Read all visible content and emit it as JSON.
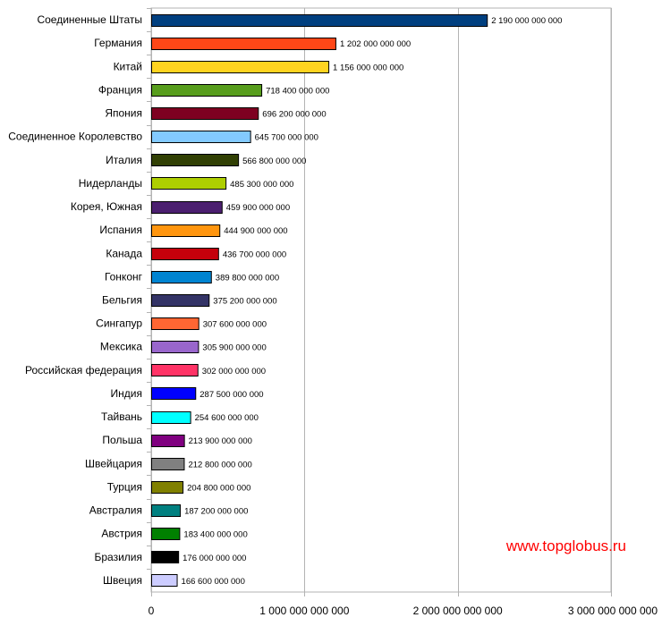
{
  "chart_data": {
    "type": "bar",
    "orientation": "horizontal",
    "categories": [
      "Соединенные Штаты",
      "Германия",
      "Китай",
      "Франция",
      "Япония",
      "Соединенное Королевство",
      "Италия",
      "Нидерланды",
      "Корея, Южная",
      "Испания",
      "Канада",
      "Гонконг",
      "Бельгия",
      "Сингапур",
      "Мексика",
      "Российская федерация",
      "Индия",
      "Тайвань",
      "Польша",
      "Швейцария",
      "Турция",
      "Австралия",
      "Австрия",
      "Бразилия",
      "Швеция"
    ],
    "values": [
      2190000000000,
      1202000000000,
      1156000000000,
      718400000000,
      696200000000,
      645700000000,
      566800000000,
      485300000000,
      459900000000,
      444900000000,
      436700000000,
      389800000000,
      375200000000,
      307600000000,
      305900000000,
      302000000000,
      287500000000,
      254600000000,
      213900000000,
      212800000000,
      204800000000,
      187200000000,
      183400000000,
      176000000000,
      166600000000
    ],
    "value_labels": [
      "2 190 000 000 000",
      "1 202 000 000 000",
      "1 156 000 000 000",
      "718 400 000 000",
      "696 200 000 000",
      "645 700 000 000",
      "566 800 000 000",
      "485 300 000 000",
      "459 900 000 000",
      "444 900 000 000",
      "436 700 000 000",
      "389 800 000 000",
      "375 200 000 000",
      "307 600 000 000",
      "305 900 000 000",
      "302 000 000 000",
      "287 500 000 000",
      "254 600 000 000",
      "213 900 000 000",
      "212 800 000 000",
      "204 800 000 000",
      "187 200 000 000",
      "183 400 000 000",
      "176 000 000 000",
      "166 600 000 000"
    ],
    "colors": [
      "#003f7f",
      "#ff4717",
      "#ffd320",
      "#579d1c",
      "#7e0021",
      "#83caff",
      "#314004",
      "#aecf00",
      "#4b1f6f",
      "#ff950e",
      "#c5000b",
      "#0084d1",
      "#333366",
      "#ff6633",
      "#9966cc",
      "#ff3366",
      "#0000ff",
      "#00ffff",
      "#800080",
      "#808080",
      "#808000",
      "#008080",
      "#008000",
      "#000000",
      "#ccccff"
    ],
    "xlim": [
      0,
      3000000000000
    ],
    "xticks": [
      0,
      1000000000000,
      2000000000000,
      3000000000000
    ],
    "xtick_labels": [
      "0",
      "1 000 000 000 000",
      "2 000 000 000 000",
      "3 000 000 000 000"
    ],
    "grid": "vertical",
    "title": "",
    "xlabel": "",
    "ylabel": ""
  },
  "watermark": "www.topglobus.ru"
}
